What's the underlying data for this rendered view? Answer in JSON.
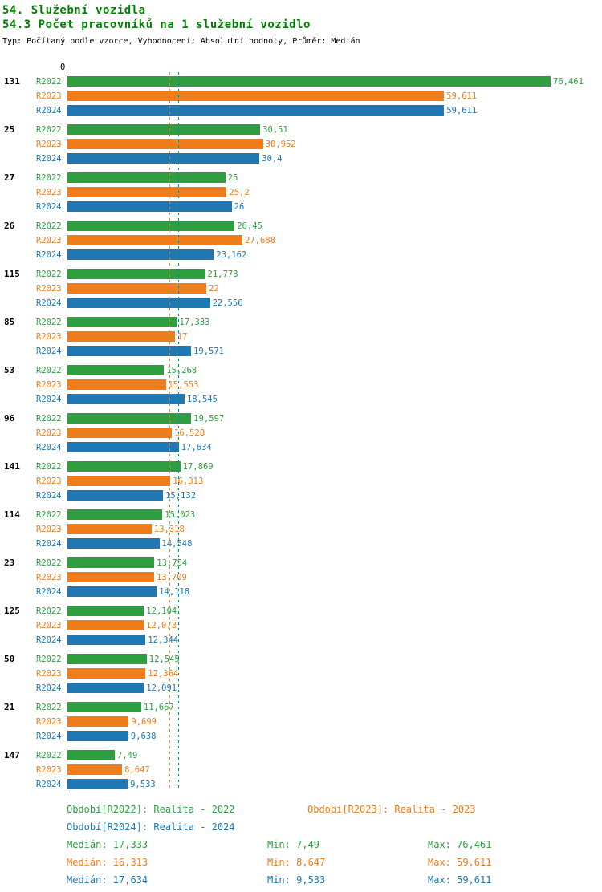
{
  "title_line1": "54. Služební vozidla",
  "title_line2": "54.3 Počet pracovníků na 1 služební vozidlo",
  "subtitle": "Typ: Počítaný podle vzorce, Vyhodnocení: Absolutní hodnoty, Průměr: Medián",
  "axis_zero_label": "0",
  "colors": {
    "title": "#008000",
    "green": "#2f9e41",
    "orange": "#ef7d1c",
    "blue": "#1f77b4"
  },
  "chart_data": {
    "type": "bar",
    "orientation": "horizontal",
    "title": "54.3 Počet pracovníků na 1 služební vozidlo",
    "xlabel": "",
    "ylabel": "",
    "xlim": [
      0,
      76.461
    ],
    "xmax": 76.461,
    "grid": false,
    "legend_position": "bottom",
    "series": [
      {
        "name": "R2022",
        "color": "#2f9e41"
      },
      {
        "name": "R2023",
        "color": "#ef7d1c"
      },
      {
        "name": "R2024",
        "color": "#1f77b4"
      }
    ],
    "groups": [
      {
        "label": "131",
        "values": [
          76.461,
          59.611,
          59.611
        ],
        "display": [
          "76,461",
          "59,611",
          "59,611"
        ]
      },
      {
        "label": "25",
        "values": [
          30.51,
          30.952,
          30.4
        ],
        "display": [
          "30,51",
          "30,952",
          "30,4"
        ]
      },
      {
        "label": "27",
        "values": [
          25,
          25.2,
          26
        ],
        "display": [
          "25",
          "25,2",
          "26"
        ]
      },
      {
        "label": "26",
        "values": [
          26.45,
          27.688,
          23.162
        ],
        "display": [
          "26,45",
          "27,688",
          "23,162"
        ]
      },
      {
        "label": "115",
        "values": [
          21.778,
          22,
          22.556
        ],
        "display": [
          "21,778",
          "22",
          "22,556"
        ]
      },
      {
        "label": "85",
        "values": [
          17.333,
          17,
          19.571
        ],
        "display": [
          "17,333",
          "17",
          "19,571"
        ]
      },
      {
        "label": "53",
        "values": [
          15.268,
          15.553,
          18.545
        ],
        "display": [
          "15,268",
          "15,553",
          "18,545"
        ]
      },
      {
        "label": "96",
        "values": [
          19.597,
          16.528,
          17.634
        ],
        "display": [
          "19,597",
          "16,528",
          "17,634"
        ]
      },
      {
        "label": "141",
        "values": [
          17.869,
          16.313,
          15.132
        ],
        "display": [
          "17,869",
          "16,313",
          "15,132"
        ]
      },
      {
        "label": "114",
        "values": [
          15.023,
          13.318,
          14.548
        ],
        "display": [
          "15,023",
          "13,318",
          "14,548"
        ]
      },
      {
        "label": "23",
        "values": [
          13.754,
          13.709,
          14.118
        ],
        "display": [
          "13,754",
          "13,709",
          "14,118"
        ]
      },
      {
        "label": "125",
        "values": [
          12.104,
          12.073,
          12.344
        ],
        "display": [
          "12,104",
          "12,073",
          "12,344"
        ]
      },
      {
        "label": "50",
        "values": [
          12.545,
          12.364,
          12.091
        ],
        "display": [
          "12,545",
          "12,364",
          "12,091"
        ]
      },
      {
        "label": "21",
        "values": [
          11.667,
          9.699,
          9.638
        ],
        "display": [
          "11,667",
          "9,699",
          "9,638"
        ]
      },
      {
        "label": "147",
        "values": [
          7.49,
          8.647,
          9.533
        ],
        "display": [
          "7,49",
          "8,647",
          "9,533"
        ]
      }
    ],
    "medians": [
      17.333,
      16.313,
      17.634
    ]
  },
  "legend": [
    {
      "label": "Období[R2022]: Realita - 2022",
      "color": "#2f9e41"
    },
    {
      "label": "Období[R2023]: Realita - 2023",
      "color": "#ef7d1c"
    },
    {
      "label": "Období[R2024]: Realita - 2024",
      "color": "#1f77b4"
    }
  ],
  "stats": [
    {
      "median": "Medián: 17,333",
      "min": "Min: 7,49",
      "max": "Max: 76,461",
      "color": "#2f9e41"
    },
    {
      "median": "Medián: 16,313",
      "min": "Min: 8,647",
      "max": "Max: 59,611",
      "color": "#ef7d1c"
    },
    {
      "median": "Medián: 17,634",
      "min": "Min: 9,533",
      "max": "Max: 59,611",
      "color": "#1f77b4"
    }
  ]
}
